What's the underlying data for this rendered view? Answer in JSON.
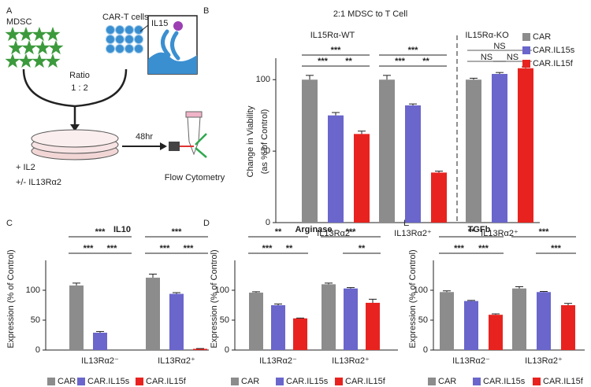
{
  "panel_labels": [
    "A",
    "B",
    "C",
    "D",
    "E"
  ],
  "diagram": {
    "mdsc_label": "MDSC",
    "cart_label": "CAR-T cells",
    "il15_label": "IL15",
    "ratio_label": "Ratio",
    "ratio_value": "1 : 2",
    "time_label": "48hr",
    "condition_1": "+ IL2",
    "condition_2": "+/- IL13Rα2",
    "readout_label": "Flow Cytometry"
  },
  "chart_data": [
    {
      "type": "bar",
      "title": "2:1 MDSC to T Cell",
      "group_titles": [
        "IL15Rα-WT",
        "IL15Rα-KO"
      ],
      "y_label": [
        "Change in Viability",
        "(as % of Control)"
      ],
      "categories": [
        "IL13Rα2⁻",
        "IL13Rα2⁺",
        "IL13Rα2⁺"
      ],
      "series": [
        {
          "name": "CAR",
          "color": "#8c8c8c",
          "values": [
            100,
            100,
            100
          ],
          "errors": [
            3,
            3,
            1
          ]
        },
        {
          "name": "CAR.IL15s",
          "color": "#6a66cc",
          "values": [
            75,
            82,
            104
          ],
          "errors": [
            2,
            1,
            1
          ]
        },
        {
          "name": "CAR.IL15f",
          "color": "#e8231f",
          "values": [
            62,
            35,
            108
          ],
          "errors": [
            2,
            1,
            1
          ]
        }
      ],
      "ylim": [
        0,
        115
      ],
      "yticks": [
        0,
        50,
        100
      ],
      "legend": "upper right",
      "annotations": [
        {
          "text": "***"
        },
        {
          "text": "***"
        },
        {
          "text": "**"
        },
        {
          "text": "***"
        },
        {
          "text": "***"
        },
        {
          "text": "**"
        },
        {
          "text": "NS"
        },
        {
          "text": "NS"
        },
        {
          "text": "NS"
        }
      ]
    },
    {
      "type": "bar",
      "title": "IL10",
      "y_label": [
        "Expression (% of Control)"
      ],
      "categories": [
        "IL13Rα2⁻",
        "IL13Rα2⁺"
      ],
      "series": [
        {
          "name": "CAR",
          "color": "#8c8c8c",
          "values": [
            108,
            121
          ],
          "errors": [
            4,
            6
          ]
        },
        {
          "name": "CAR.IL15s",
          "color": "#6a66cc",
          "values": [
            29,
            94
          ],
          "errors": [
            2,
            2
          ]
        },
        {
          "name": "CAR.IL15f",
          "color": "#e8231f",
          "values": [
            null,
            2
          ],
          "errors": [
            null,
            0.5
          ]
        }
      ],
      "ylim": [
        0,
        150
      ],
      "yticks": [
        0,
        50,
        100
      ],
      "legend": "bottom",
      "annotations": [
        {
          "text": "***"
        },
        {
          "text": "***"
        },
        {
          "text": "***"
        },
        {
          "text": "***"
        },
        {
          "text": "***"
        },
        {
          "text": "***"
        }
      ]
    },
    {
      "type": "bar",
      "title": "Arginase",
      "y_label": [
        "Expression (% of Control)"
      ],
      "categories": [
        "IL13Rα2⁻",
        "IL13Rα2⁺"
      ],
      "series": [
        {
          "name": "CAR",
          "color": "#8c8c8c",
          "values": [
            96,
            110
          ],
          "errors": [
            1.5,
            2
          ]
        },
        {
          "name": "CAR.IL15s",
          "color": "#6a66cc",
          "values": [
            75,
            103
          ],
          "errors": [
            2,
            1.5
          ]
        },
        {
          "name": "CAR.IL15f",
          "color": "#e8231f",
          "values": [
            53,
            79
          ],
          "errors": [
            0.5,
            6
          ]
        }
      ],
      "ylim": [
        0,
        150
      ],
      "yticks": [
        0,
        50,
        100
      ],
      "legend": "bottom",
      "annotations": [
        {
          "text": "**"
        },
        {
          "text": "***"
        },
        {
          "text": "**"
        },
        {
          "text": "***"
        },
        {
          "text": "**"
        }
      ]
    },
    {
      "type": "bar",
      "title": "TGFb",
      "y_label": [
        "Expression (% of Control)"
      ],
      "categories": [
        "IL13Rα2⁻",
        "IL13Rα2⁺"
      ],
      "series": [
        {
          "name": "CAR",
          "color": "#8c8c8c",
          "values": [
            97,
            103
          ],
          "errors": [
            2,
            3
          ]
        },
        {
          "name": "CAR.IL15s",
          "color": "#6a66cc",
          "values": [
            82,
            97
          ],
          "errors": [
            1,
            1
          ]
        },
        {
          "name": "CAR.IL15f",
          "color": "#e8231f",
          "values": [
            59,
            75
          ],
          "errors": [
            1.5,
            3
          ]
        }
      ],
      "ylim": [
        0,
        150
      ],
      "yticks": [
        0,
        50,
        100
      ],
      "legend": "bottom",
      "annotations": [
        {
          "text": "**"
        },
        {
          "text": "***"
        },
        {
          "text": "***"
        },
        {
          "text": "***"
        },
        {
          "text": "***"
        }
      ]
    }
  ]
}
